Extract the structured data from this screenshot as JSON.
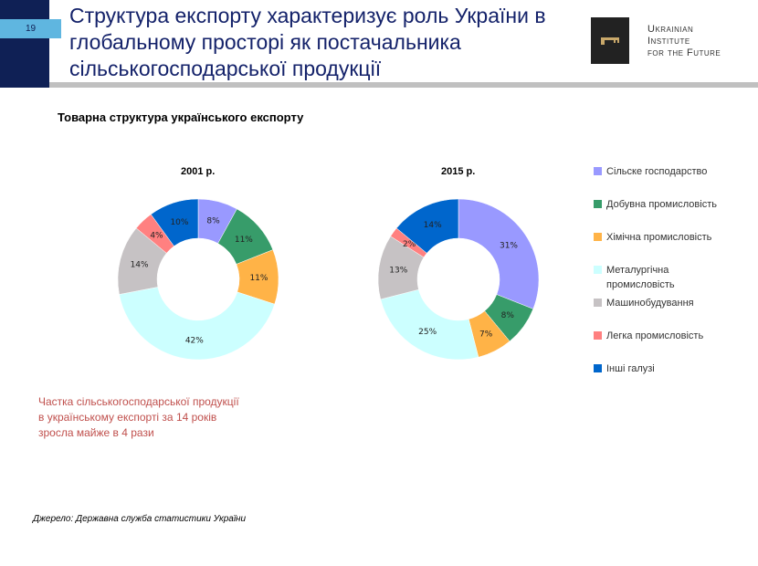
{
  "slide": {
    "number": "19",
    "title": "Структура експорту характеризує роль України в глобальному просторі як постачальника сільськогосподарської продукції",
    "logo_text": [
      "Ukrainian",
      "Institute",
      "for the Future"
    ],
    "subtitle": "Товарна структура українського експорту",
    "note": [
      "Частка сільськогосподарської продукції",
      "в українському експорті за 14 років",
      "зросла майже в 4 рази"
    ],
    "source": "Джерело: Державна служба статистики України"
  },
  "chart_data": [
    {
      "type": "pie",
      "donut": true,
      "title": "2001 р.",
      "categories": [
        "Сільске господарство",
        "Добувна промисловість",
        "Хімічна промисловість",
        "Металургічна промисловість",
        "Машинобудування",
        "Легка промисловість",
        "Інші галузі"
      ],
      "values": [
        8,
        11,
        11,
        42,
        14,
        4,
        10
      ],
      "labels": [
        "8%",
        "11%",
        "11%",
        "42%",
        "14%",
        "4%",
        "10%"
      ]
    },
    {
      "type": "pie",
      "donut": true,
      "title": "2015 р.",
      "categories": [
        "Сільске господарство",
        "Добувна промисловість",
        "Хімічна промисловість",
        "Металургічна промисловість",
        "Машинобудування",
        "Легка промисловість",
        "Інші галузі"
      ],
      "values": [
        31,
        8,
        7,
        25,
        13,
        2,
        14
      ],
      "labels": [
        "31%",
        "8%",
        "7%",
        "25%",
        "13%",
        "2%",
        "14%"
      ]
    }
  ],
  "legend": {
    "position": "right",
    "items": [
      "Сільске господарство",
      "Добувна промисловість",
      "Хімічна промисловість",
      "Металургічна промисловість",
      "Машинобудування",
      "Легка промисловість",
      "Інші галузі"
    ]
  },
  "colors": [
    "#9999ff",
    "#379c6a",
    "#ffb347",
    "#ccffff",
    "#c6c2c4",
    "#ff8080",
    "#0066cc"
  ]
}
